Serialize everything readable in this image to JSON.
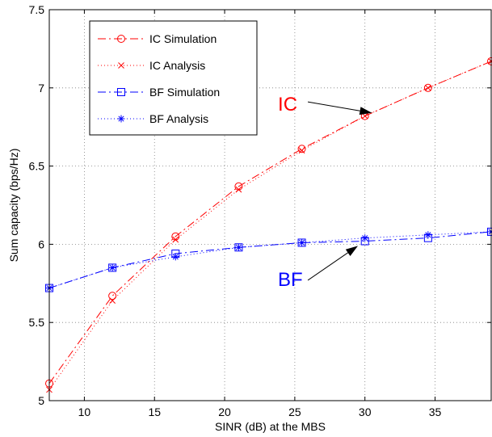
{
  "chart_data": {
    "type": "line",
    "title": "",
    "xlabel": "SINR (dB) at the MBS",
    "ylabel": "Sum capacity (bps/Hz)",
    "xlim": [
      7.5,
      39
    ],
    "ylim": [
      5,
      7.5
    ],
    "xticks": [
      10,
      15,
      20,
      25,
      30,
      35
    ],
    "yticks": [
      5,
      5.5,
      6,
      6.5,
      7,
      7.5
    ],
    "xtick_labels": [
      "10",
      "15",
      "20",
      "25",
      "30",
      "35"
    ],
    "ytick_labels": [
      "5",
      "5.5",
      "6",
      "6.5",
      "7",
      "7.5"
    ],
    "grid": true,
    "legend_position": "top-left",
    "series": [
      {
        "name": "IC Simulation",
        "color": "#ff0000",
        "line": "dash",
        "marker": "circle",
        "x": [
          7.5,
          12,
          16.5,
          21,
          25.5,
          30,
          34.5,
          39
        ],
        "y": [
          5.11,
          5.67,
          6.05,
          6.37,
          6.61,
          6.82,
          7.0,
          7.17
        ]
      },
      {
        "name": "IC Analysis",
        "color": "#ff0000",
        "line": "dot",
        "marker": "x",
        "x": [
          7.5,
          12,
          16.5,
          21,
          25.5,
          30,
          34.5,
          39
        ],
        "y": [
          5.07,
          5.64,
          6.03,
          6.35,
          6.6,
          6.82,
          7.0,
          7.17
        ]
      },
      {
        "name": "BF Simulation",
        "color": "#0000ff",
        "line": "dash",
        "marker": "square",
        "x": [
          7.5,
          12,
          16.5,
          21,
          25.5,
          30,
          34.5,
          39
        ],
        "y": [
          5.72,
          5.85,
          5.94,
          5.98,
          6.01,
          6.02,
          6.04,
          6.08
        ]
      },
      {
        "name": "BF Analysis",
        "color": "#0000ff",
        "line": "dot",
        "marker": "star",
        "x": [
          7.5,
          12,
          16.5,
          21,
          25.5,
          30,
          34.5,
          39
        ],
        "y": [
          5.72,
          5.85,
          5.92,
          5.98,
          6.01,
          6.04,
          6.06,
          6.08
        ]
      }
    ],
    "annotations": [
      {
        "text": "IC",
        "color": "#ff0000",
        "text_x": 23.8,
        "text_y": 6.9,
        "arrow_to_x": 30.5,
        "arrow_to_y": 6.84
      },
      {
        "text": "BF",
        "color": "#0000ff",
        "text_x": 23.8,
        "text_y": 5.78,
        "arrow_to_x": 29.5,
        "arrow_to_y": 5.99
      }
    ]
  }
}
